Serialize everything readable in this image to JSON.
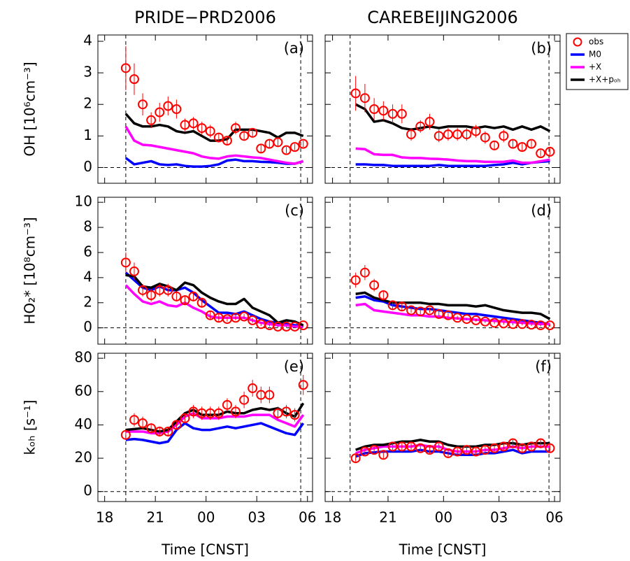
{
  "chart_data": [
    {
      "type": "line",
      "title": "PRIDE−PRD2006",
      "ylabel": "OH [10⁶cm⁻³]",
      "annotation": "(a)",
      "legend": "outside-right",
      "xlim": [
        17.6,
        30.3
      ],
      "xticks": [
        18,
        21,
        24,
        27,
        30
      ],
      "show_xtick_labels": false,
      "ylim": [
        -0.5,
        4.2
      ],
      "yticks": [
        0,
        1,
        2,
        3,
        4
      ],
      "hline": 0,
      "vlines": [
        19.25,
        29.6
      ],
      "x": [
        19.25,
        19.75,
        20.25,
        20.75,
        21.25,
        21.75,
        22.25,
        22.75,
        23.25,
        23.75,
        24.25,
        24.75,
        25.25,
        25.75,
        26.25,
        26.75,
        27.25,
        27.75,
        28.25,
        28.75,
        29.25,
        29.75
      ],
      "series": [
        {
          "name": "obs",
          "color": "#ff0000",
          "style": "circle",
          "values": [
            3.15,
            2.8,
            2.0,
            1.5,
            1.75,
            1.95,
            1.85,
            1.35,
            1.4,
            1.25,
            1.15,
            0.95,
            0.85,
            1.25,
            1.0,
            1.1,
            0.6,
            0.75,
            0.8,
            0.55,
            0.65,
            0.75
          ],
          "errors": [
            0.7,
            0.5,
            0.35,
            0.25,
            0.3,
            0.3,
            0.3,
            0.2,
            0.2,
            0.2,
            0.2,
            0.15,
            0.15,
            0.2,
            0.15,
            0.15,
            0.15,
            0.15,
            0.15,
            0.1,
            0.1,
            0.1
          ]
        },
        {
          "name": "M0",
          "color": "#0000ff",
          "style": "line",
          "values": [
            0.3,
            0.1,
            0.15,
            0.2,
            0.1,
            0.08,
            0.1,
            0.05,
            0.03,
            0.03,
            0.05,
            0.1,
            0.22,
            0.25,
            0.2,
            0.2,
            0.18,
            0.17,
            0.15,
            0.12,
            0.12,
            0.2
          ]
        },
        {
          "name": "+X",
          "color": "#ff00ff",
          "style": "line",
          "values": [
            1.3,
            0.85,
            0.72,
            0.7,
            0.65,
            0.6,
            0.55,
            0.5,
            0.45,
            0.35,
            0.3,
            0.28,
            0.35,
            0.38,
            0.35,
            0.32,
            0.3,
            0.25,
            0.2,
            0.15,
            0.12,
            0.2
          ]
        },
        {
          "name": "+X+pₒₕ",
          "color": "#000000",
          "style": "line",
          "values": [
            1.7,
            1.4,
            1.3,
            1.3,
            1.35,
            1.3,
            1.15,
            1.1,
            1.15,
            1.0,
            0.85,
            0.85,
            0.9,
            1.2,
            1.2,
            1.2,
            1.15,
            1.1,
            0.95,
            1.1,
            1.1,
            1.0
          ]
        }
      ]
    },
    {
      "type": "line",
      "title": "CAREBEIJING2006",
      "annotation": "(b)",
      "xlim": [
        17.6,
        30.3
      ],
      "xticks": [
        18,
        21,
        24,
        27,
        30
      ],
      "show_xtick_labels": false,
      "ylim": [
        -0.5,
        4.2
      ],
      "yticks": [
        0,
        1,
        2,
        3,
        4
      ],
      "show_ytick_labels": false,
      "hline": 0,
      "vlines": [
        18.95,
        29.7
      ],
      "x": [
        19.25,
        19.75,
        20.25,
        20.75,
        21.25,
        21.75,
        22.25,
        22.75,
        23.25,
        23.75,
        24.25,
        24.75,
        25.25,
        25.75,
        26.25,
        26.75,
        27.25,
        27.75,
        28.25,
        28.75,
        29.25,
        29.75
      ],
      "series": [
        {
          "color": "#ff0000",
          "style": "circle",
          "values": [
            2.35,
            2.2,
            1.85,
            1.8,
            1.7,
            1.7,
            1.05,
            1.3,
            1.45,
            1.0,
            1.05,
            1.05,
            1.05,
            1.15,
            0.95,
            0.7,
            1.0,
            0.75,
            0.65,
            0.75,
            0.45,
            0.5
          ],
          "errors": [
            0.55,
            0.45,
            0.35,
            0.3,
            0.3,
            0.3,
            0.2,
            0.2,
            0.25,
            0.2,
            0.2,
            0.2,
            0.2,
            0.2,
            0.2,
            0.15,
            0.2,
            0.15,
            0.15,
            0.15,
            0.1,
            0.1
          ]
        },
        {
          "color": "#0000ff",
          "style": "line",
          "values": [
            0.1,
            0.1,
            0.08,
            0.08,
            0.05,
            0.05,
            0.05,
            0.05,
            0.05,
            0.08,
            0.05,
            0.05,
            0.05,
            0.05,
            0.05,
            0.08,
            0.1,
            0.15,
            0.1,
            0.15,
            0.18,
            0.2
          ]
        },
        {
          "color": "#ff00ff",
          "style": "line",
          "values": [
            0.6,
            0.58,
            0.42,
            0.4,
            0.4,
            0.32,
            0.3,
            0.3,
            0.28,
            0.27,
            0.25,
            0.22,
            0.2,
            0.2,
            0.18,
            0.18,
            0.18,
            0.22,
            0.15,
            0.15,
            0.2,
            0.25
          ]
        },
        {
          "color": "#000000",
          "style": "line",
          "values": [
            2.0,
            1.85,
            1.45,
            1.5,
            1.4,
            1.25,
            1.2,
            1.25,
            1.3,
            1.25,
            1.3,
            1.3,
            1.3,
            1.25,
            1.3,
            1.25,
            1.3,
            1.2,
            1.3,
            1.2,
            1.3,
            1.15
          ]
        }
      ]
    },
    {
      "type": "line",
      "ylabel": "HO₂* [10⁸cm⁻³]",
      "annotation": "(c)",
      "xlim": [
        17.6,
        30.3
      ],
      "xticks": [
        18,
        21,
        24,
        27,
        30
      ],
      "show_xtick_labels": false,
      "ylim": [
        -1.3,
        10.4
      ],
      "yticks": [
        0,
        2,
        4,
        6,
        8,
        10
      ],
      "hline": 0,
      "vlines": [
        19.25,
        29.6
      ],
      "x": [
        19.25,
        19.75,
        20.25,
        20.75,
        21.25,
        21.75,
        22.25,
        22.75,
        23.25,
        23.75,
        24.25,
        24.75,
        25.25,
        25.75,
        26.25,
        26.75,
        27.25,
        27.75,
        28.25,
        28.75,
        29.25,
        29.75
      ],
      "series": [
        {
          "color": "#ff0000",
          "style": "circle",
          "values": [
            5.2,
            4.5,
            3.0,
            2.6,
            3.0,
            3.0,
            2.5,
            2.2,
            2.5,
            2.0,
            1.0,
            0.8,
            0.7,
            0.8,
            0.9,
            0.6,
            0.3,
            0.2,
            0.1,
            0.1,
            0.1,
            0.2
          ],
          "errors": [
            0.8,
            0.7,
            0.5,
            0.5,
            0.5,
            0.5,
            0.4,
            0.4,
            0.4,
            0.4,
            0.3,
            0.3,
            0.2,
            0.2,
            0.2,
            0.2,
            0.15,
            0.1,
            0.1,
            0.1,
            0.1,
            0.1
          ]
        },
        {
          "color": "#0000ff",
          "style": "line",
          "values": [
            4.4,
            3.8,
            3.2,
            3.0,
            3.3,
            3.0,
            3.0,
            3.2,
            2.8,
            2.2,
            1.7,
            1.2,
            1.2,
            1.1,
            1.3,
            1.0,
            0.7,
            0.5,
            0.4,
            0.3,
            0.2,
            0.2
          ]
        },
        {
          "color": "#ff00ff",
          "style": "line",
          "values": [
            3.4,
            2.7,
            2.1,
            1.9,
            2.1,
            1.8,
            1.7,
            2.0,
            1.6,
            1.3,
            0.9,
            0.8,
            0.8,
            0.8,
            0.8,
            0.6,
            0.4,
            0.3,
            0.2,
            0.2,
            0.1,
            0.1
          ]
        },
        {
          "color": "#000000",
          "style": "line",
          "values": [
            4.2,
            4.1,
            3.3,
            3.2,
            3.5,
            3.3,
            3.0,
            3.6,
            3.4,
            2.8,
            2.4,
            2.1,
            1.9,
            1.9,
            2.3,
            1.6,
            1.3,
            1.0,
            0.4,
            0.6,
            0.5,
            0.2
          ]
        }
      ]
    },
    {
      "type": "line",
      "annotation": "(d)",
      "xlim": [
        17.6,
        30.3
      ],
      "xticks": [
        18,
        21,
        24,
        27,
        30
      ],
      "show_xtick_labels": false,
      "ylim": [
        -1.3,
        10.4
      ],
      "yticks": [
        0,
        2,
        4,
        6,
        8,
        10
      ],
      "show_ytick_labels": false,
      "hline": 0,
      "vlines": [
        18.95,
        29.7
      ],
      "x": [
        19.25,
        19.75,
        20.25,
        20.75,
        21.25,
        21.75,
        22.25,
        22.75,
        23.25,
        23.75,
        24.25,
        24.75,
        25.25,
        25.75,
        26.25,
        26.75,
        27.25,
        27.75,
        28.25,
        28.75,
        29.25,
        29.75
      ],
      "series": [
        {
          "color": "#ff0000",
          "style": "circle",
          "values": [
            3.8,
            4.4,
            3.4,
            2.6,
            1.8,
            1.7,
            1.4,
            1.3,
            1.4,
            1.1,
            1.0,
            0.8,
            0.7,
            0.6,
            0.5,
            0.4,
            0.35,
            0.3,
            0.3,
            0.25,
            0.2,
            0.2
          ],
          "errors": [
            0.6,
            0.6,
            0.5,
            0.4,
            0.3,
            0.3,
            0.2,
            0.2,
            0.2,
            0.2,
            0.15,
            0.15,
            0.1,
            0.1,
            0.1,
            0.1,
            0.1,
            0.1,
            0.1,
            0.1,
            0.1,
            0.1
          ]
        },
        {
          "color": "#0000ff",
          "style": "line",
          "values": [
            2.4,
            2.5,
            2.2,
            2.1,
            1.8,
            1.7,
            1.6,
            1.5,
            1.5,
            1.4,
            1.3,
            1.2,
            1.1,
            1.1,
            1.0,
            0.9,
            0.8,
            0.7,
            0.6,
            0.5,
            0.4,
            0.3
          ]
        },
        {
          "color": "#ff00ff",
          "style": "line",
          "values": [
            1.8,
            1.9,
            1.4,
            1.3,
            1.2,
            1.1,
            1.0,
            1.0,
            0.9,
            0.9,
            0.8,
            0.75,
            0.7,
            0.65,
            0.6,
            0.55,
            0.5,
            0.45,
            0.4,
            0.35,
            0.3,
            0.3
          ]
        },
        {
          "color": "#000000",
          "style": "line",
          "values": [
            2.7,
            2.8,
            2.4,
            2.2,
            2.0,
            2.0,
            2.0,
            2.0,
            1.9,
            1.9,
            1.8,
            1.8,
            1.8,
            1.7,
            1.8,
            1.6,
            1.4,
            1.3,
            1.2,
            1.2,
            1.1,
            0.7
          ]
        }
      ]
    },
    {
      "type": "line",
      "ylabel": "kₒₕ [s⁻¹]",
      "annotation": "(e)",
      "xlabel": "Time [CNST]",
      "xlim": [
        17.6,
        30.3
      ],
      "xticks": [
        18,
        21,
        {
          "value": 24,
          "label": "00"
        },
        {
          "value": 27,
          "label": "03"
        },
        {
          "value": 30,
          "label": "06"
        }
      ],
      "ylim": [
        -6,
        83
      ],
      "yticks": [
        0,
        20,
        40,
        60,
        80
      ],
      "hline": 0,
      "vlines": [
        19.25,
        29.6
      ],
      "x": [
        19.25,
        19.75,
        20.25,
        20.75,
        21.25,
        21.75,
        22.25,
        22.75,
        23.25,
        23.75,
        24.25,
        24.75,
        25.25,
        25.75,
        26.25,
        26.75,
        27.25,
        27.75,
        28.25,
        28.75,
        29.25,
        29.75
      ],
      "series": [
        {
          "color": "#ff0000",
          "style": "circle",
          "values": [
            34,
            43,
            41,
            38,
            36,
            36,
            40,
            44,
            48,
            47,
            47,
            47,
            52,
            48,
            55,
            62,
            58,
            58,
            47,
            48,
            46,
            64
          ],
          "errors": [
            3,
            4,
            4,
            3,
            3,
            3,
            3,
            3,
            4,
            4,
            4,
            4,
            4,
            4,
            5,
            5,
            5,
            5,
            4,
            4,
            4,
            6
          ]
        },
        {
          "color": "#0000ff",
          "style": "line",
          "values": [
            31,
            31.5,
            31,
            30,
            29,
            30,
            37,
            41,
            38,
            37,
            37,
            38,
            39,
            38,
            39,
            40,
            41,
            39,
            37,
            35,
            34,
            41
          ]
        },
        {
          "color": "#ff00ff",
          "style": "line",
          "values": [
            36,
            36,
            36,
            35,
            35,
            36,
            40,
            45,
            47,
            44,
            44,
            44,
            45,
            45,
            45,
            46,
            46,
            46,
            43,
            41,
            39,
            46
          ]
        },
        {
          "color": "#000000",
          "style": "line",
          "values": [
            37,
            37.5,
            38,
            37,
            36,
            37,
            42,
            47,
            49,
            46,
            46,
            46,
            48,
            47,
            47,
            49,
            50,
            49,
            50,
            47,
            45,
            53
          ]
        }
      ]
    },
    {
      "type": "line",
      "annotation": "(f)",
      "xlabel": "Time [CNST]",
      "xlim": [
        17.6,
        30.3
      ],
      "xticks": [
        18,
        21,
        {
          "value": 24,
          "label": "00"
        },
        {
          "value": 27,
          "label": "03"
        },
        {
          "value": 30,
          "label": "06"
        }
      ],
      "ylim": [
        -6,
        83
      ],
      "yticks": [
        0,
        20,
        40,
        60,
        80
      ],
      "show_ytick_labels": false,
      "hline": 0,
      "vlines": [
        18.95,
        29.7
      ],
      "x": [
        19.25,
        19.75,
        20.25,
        20.75,
        21.25,
        21.75,
        22.25,
        22.75,
        23.25,
        23.75,
        24.25,
        24.75,
        25.25,
        25.75,
        26.25,
        26.75,
        27.25,
        27.75,
        28.25,
        28.75,
        29.25,
        29.75
      ],
      "series": [
        {
          "color": "#ff0000",
          "style": "circle",
          "values": [
            20,
            24,
            25,
            22,
            27,
            27,
            27,
            26,
            25,
            27,
            23,
            24,
            25,
            24,
            25,
            26,
            27,
            29,
            26,
            27,
            29,
            26
          ],
          "errors": [
            2,
            2,
            2,
            2,
            2,
            2,
            2,
            2,
            2,
            2,
            2,
            2,
            2,
            2,
            2,
            2,
            2,
            2,
            2,
            2,
            2,
            2
          ]
        },
        {
          "color": "#0000ff",
          "style": "line",
          "values": [
            21,
            23,
            23.5,
            24,
            24,
            24,
            24,
            25,
            24,
            24,
            23,
            22,
            22,
            22,
            23,
            23,
            24,
            25,
            23,
            24,
            24,
            24
          ]
        },
        {
          "color": "#ff00ff",
          "style": "line",
          "values": [
            23,
            25,
            26,
            27,
            27,
            27,
            27,
            28,
            27,
            27,
            25,
            24,
            24,
            24,
            25,
            25,
            26,
            27,
            26,
            27,
            27,
            27
          ]
        },
        {
          "color": "#000000",
          "style": "line",
          "values": [
            25,
            27,
            28,
            28,
            29,
            30,
            30,
            31,
            30,
            30,
            28,
            27,
            27,
            27,
            28,
            28,
            29,
            29,
            28,
            29,
            29,
            29
          ]
        }
      ]
    }
  ]
}
